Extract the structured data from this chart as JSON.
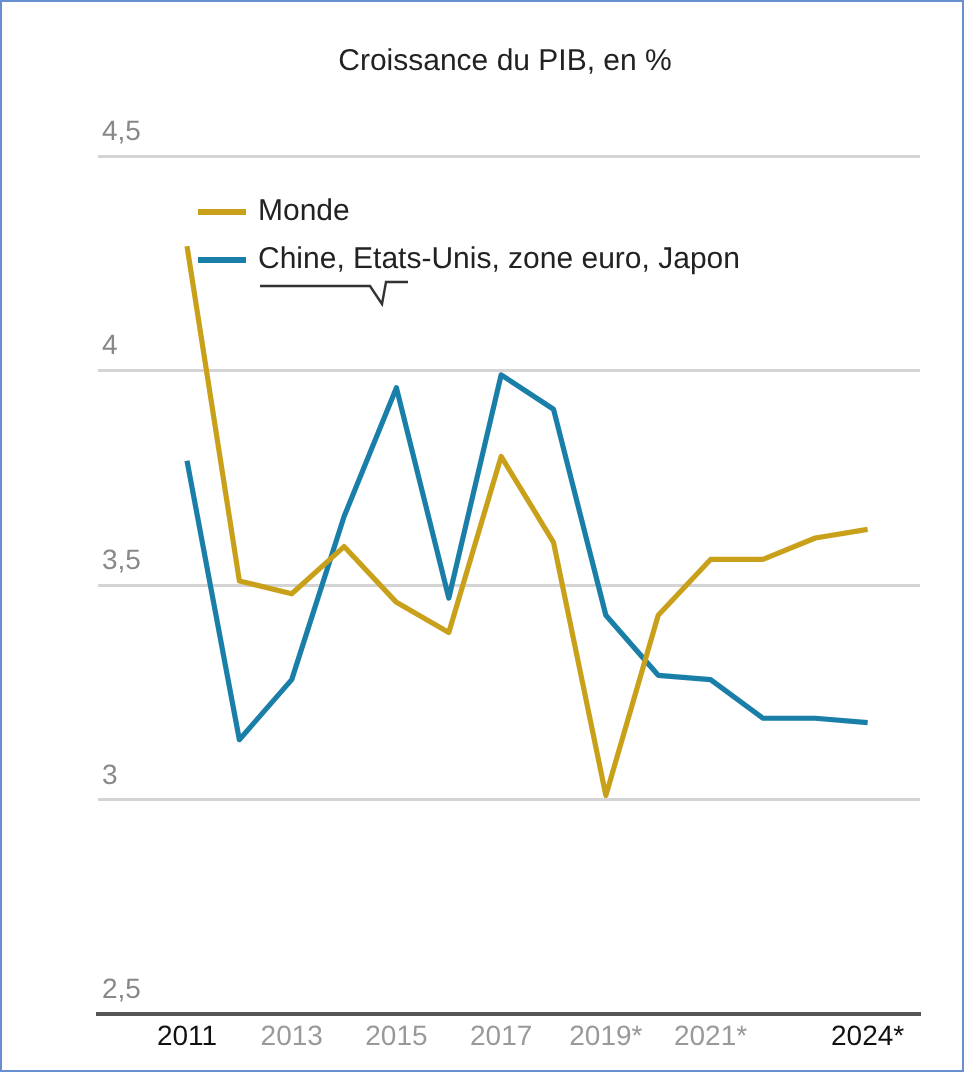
{
  "chart_data": {
    "type": "line",
    "title": "Croissance du PIB, en %",
    "x": [
      2011,
      2012,
      2013,
      2014,
      2015,
      2016,
      2017,
      2018,
      2019,
      2020,
      2021,
      2022,
      2023,
      2024
    ],
    "series": [
      {
        "name": "Monde",
        "color": "#c9a01a",
        "values": [
          4.29,
          3.51,
          3.48,
          3.59,
          3.46,
          3.39,
          3.8,
          3.6,
          3.01,
          3.43,
          3.56,
          3.56,
          3.61,
          3.63
        ]
      },
      {
        "name": "Chine, Etats-Unis, zone euro, Japon",
        "color": "#1a7fa8",
        "values": [
          3.79,
          3.14,
          3.28,
          3.66,
          3.96,
          3.47,
          3.99,
          3.91,
          3.43,
          3.29,
          3.28,
          3.19,
          3.19,
          3.18
        ]
      }
    ],
    "xlim": [
      2009.3,
      2025
    ],
    "xticks": [
      2011,
      2013,
      2015,
      {
        "value": 2017,
        "label": "2017"
      },
      {
        "value": 2019,
        "label": "2019*"
      },
      {
        "value": 2021,
        "label": "2021*"
      },
      {
        "value": 2024,
        "label": "2024*"
      }
    ],
    "ylim": [
      2.5,
      4.5
    ],
    "yticks": [
      {
        "value": 2.5,
        "label": "2,5"
      },
      {
        "value": 3,
        "label": "3"
      },
      {
        "value": 3.5,
        "label": "3,5"
      },
      {
        "value": 4,
        "label": "4"
      },
      {
        "value": 4.5,
        "label": "4,5"
      }
    ],
    "grid": "y",
    "legend": "top left",
    "marker": "none",
    "line_style": "solid"
  }
}
